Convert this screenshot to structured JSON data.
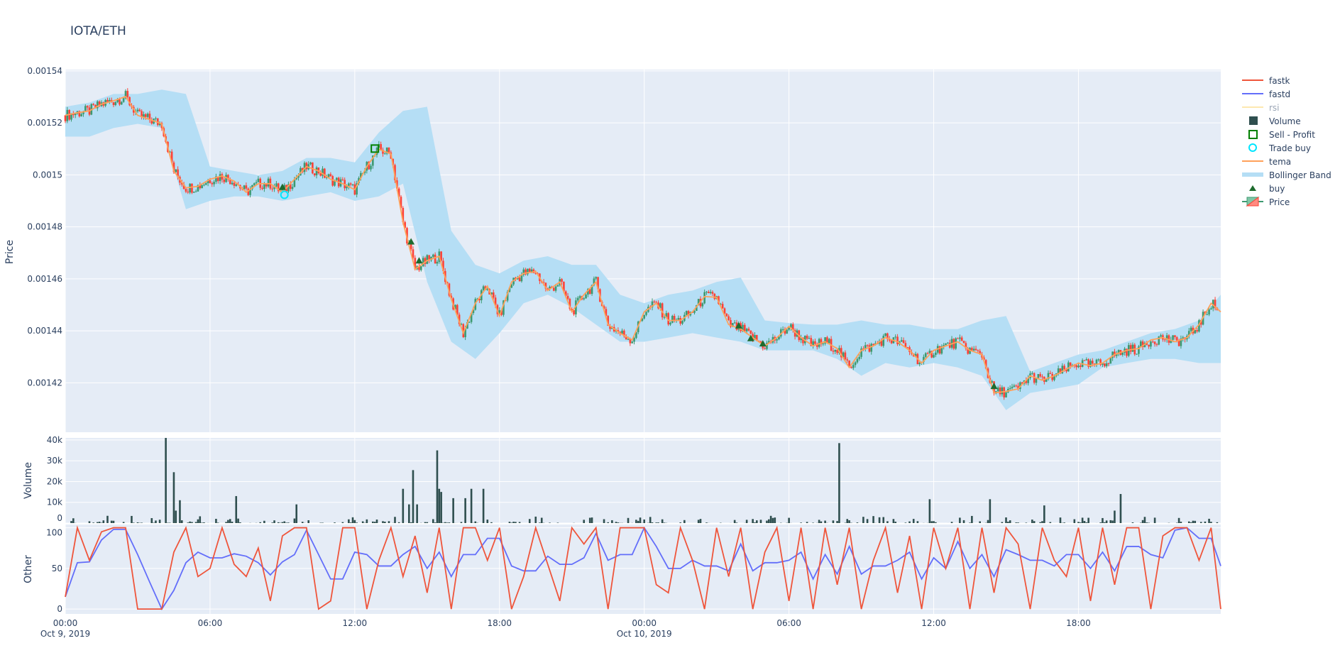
{
  "title": "IOTA/ETH",
  "colors": {
    "background": "#e5ecf6",
    "grid": "#ffffff",
    "increasing": "#3d9970",
    "decreasing": "#ff4136",
    "tema": "#ffa15a",
    "bollinger": "#b5def5",
    "volume": "#2f4f4f",
    "fastk": "#ef553b",
    "fastd": "#636efa",
    "rsi": "#fde8b0",
    "buy": "#1e6b2e",
    "sell_profit": "#008000",
    "trade_buy": "#00e5ff"
  },
  "legend": {
    "placement": "right",
    "items": [
      {
        "name": "fastk",
        "icon": "line",
        "color": "#ef553b"
      },
      {
        "name": "fastd",
        "icon": "line",
        "color": "#636efa"
      },
      {
        "name": "rsi",
        "icon": "line",
        "color": "#fde8b0",
        "hidden": true
      },
      {
        "name": "Volume",
        "icon": "square",
        "color": "#2f4f4f"
      },
      {
        "name": "Sell - Profit",
        "icon": "square-open",
        "color": "#008000"
      },
      {
        "name": "Trade buy",
        "icon": "circle-open",
        "color": "#00e5ff"
      },
      {
        "name": "tema",
        "icon": "line",
        "color": "#ffa15a"
      },
      {
        "name": "Bollinger Band",
        "icon": "band",
        "color": "#b5def5"
      },
      {
        "name": "buy",
        "icon": "triangle-up",
        "color": "#1e6b2e"
      },
      {
        "name": "Price",
        "icon": "candlestick",
        "color": "#3d9970"
      }
    ]
  },
  "chart_data": [
    {
      "type": "candlestick+line",
      "ylabel": "Price",
      "ylim": [
        0.001401,
        0.0015405
      ],
      "yticks": [
        "0.00142",
        "0.00144",
        "0.00146",
        "0.00148",
        "0.0015",
        "0.00152",
        "0.00154"
      ],
      "ytick_values": [
        0.00142,
        0.00144,
        0.00146,
        0.00148,
        0.0015,
        0.00152,
        0.00154
      ],
      "grid": true,
      "tema": {
        "name": "tema",
        "start": "2019-10-09 00:00",
        "interval_minutes": 30,
        "values": [
          0.0015229,
          0.0015239,
          0.0015246,
          0.0015272,
          0.0015285,
          0.0015301,
          0.0015229,
          0.0015213,
          0.0015196,
          0.0015015,
          0.001495,
          0.0014956,
          0.0014983,
          0.0014996,
          0.0014976,
          0.0014933,
          0.0014966,
          0.0014966,
          0.0014933,
          0.0014983,
          0.0015032,
          0.0015015,
          0.0014983,
          0.0014966,
          0.0014943,
          0.0015032,
          0.0015098,
          0.0015081,
          0.0014818,
          0.0014637,
          0.001467,
          0.0014687,
          0.0014522,
          0.0014391,
          0.0014506,
          0.0014572,
          0.0014457,
          0.0014588,
          0.0014621,
          0.0014628,
          0.0014555,
          0.0014588,
          0.0014473,
          0.0014539,
          0.0014588,
          0.0014424,
          0.0014391,
          0.0014365,
          0.0014473,
          0.0014506,
          0.001444,
          0.001444,
          0.0014473,
          0.0014532,
          0.0014529,
          0.0014424,
          0.0014407,
          0.0014374,
          0.0014342,
          0.0014374,
          0.0014417,
          0.0014374,
          0.0014342,
          0.0014358,
          0.0014332,
          0.0014259,
          0.0014325,
          0.0014342,
          0.0014374,
          0.0014358,
          0.0014325,
          0.0014276,
          0.0014325,
          0.0014342,
          0.0014358,
          0.0014325,
          0.0014309,
          0.0014161,
          0.0014167,
          0.0014177,
          0.0014227,
          0.001421,
          0.0014227,
          0.0014253,
          0.0014276,
          0.0014266,
          0.0014276,
          0.0014309,
          0.0014325,
          0.0014332,
          0.0014365,
          0.0014374,
          0.0014358,
          0.0014374,
          0.0014424,
          0.0014506,
          0.0014473
        ]
      },
      "bollinger": {
        "name": "Bollinger Band",
        "start": "2019-10-09 00:00",
        "interval_minutes": 60,
        "upper": [
          0.0015262,
          0.0015278,
          0.0015311,
          0.0015311,
          0.0015328,
          0.0015311,
          0.0015032,
          0.0015015,
          0.0014999,
          0.0015015,
          0.0015065,
          0.0015065,
          0.0015048,
          0.0015163,
          0.0015246,
          0.0015262,
          0.0014785,
          0.0014654,
          0.0014621,
          0.001467,
          0.0014687,
          0.0014654,
          0.0014654,
          0.0014539,
          0.0014506,
          0.0014539,
          0.0014555,
          0.0014588,
          0.0014605,
          0.001444,
          0.001443,
          0.0014424,
          0.0014424,
          0.001444,
          0.0014424,
          0.0014424,
          0.0014407,
          0.0014407,
          0.001444,
          0.0014457,
          0.0014243,
          0.0014276,
          0.0014309,
          0.0014325,
          0.0014358,
          0.0014391,
          0.0014407,
          0.001444,
          0.0014539
        ],
        "lower": [
          0.0015147,
          0.0015147,
          0.001518,
          0.0015196,
          0.001518,
          0.0014868,
          0.00149,
          0.0014917,
          0.0014917,
          0.00149,
          0.0014917,
          0.0014933,
          0.00149,
          0.0014917,
          0.0014966,
          0.0014588,
          0.0014358,
          0.0014292,
          0.0014391,
          0.0014506,
          0.0014539,
          0.001449,
          0.0014424,
          0.0014358,
          0.0014358,
          0.0014374,
          0.0014391,
          0.0014374,
          0.0014358,
          0.0014325,
          0.0014325,
          0.0014325,
          0.0014292,
          0.0014227,
          0.0014276,
          0.0014259,
          0.0014276,
          0.0014259,
          0.0014227,
          0.0014095,
          0.0014161,
          0.0014177,
          0.0014194,
          0.0014259,
          0.0014276,
          0.0014292,
          0.0014292,
          0.0014276,
          0.0014276
        ]
      },
      "buy": [
        {
          "time": "2019-10-09 09:00",
          "price": 0.0014953
        },
        {
          "time": "2019-10-09 14:20",
          "price": 0.0014743
        },
        {
          "time": "2019-10-09 14:40",
          "price": 0.001467
        },
        {
          "time": "2019-10-10 03:55",
          "price": 0.001442
        },
        {
          "time": "2019-10-10 04:25",
          "price": 0.0014371
        },
        {
          "time": "2019-10-10 04:55",
          "price": 0.0014351
        },
        {
          "time": "2019-10-10 14:30",
          "price": 0.0014187
        }
      ],
      "trade_buy": [
        {
          "time": "2019-10-09 09:05",
          "price": 0.0014923
        }
      ],
      "sell_profit": [
        {
          "time": "2019-10-09 12:50",
          "price": 0.0015101
        }
      ]
    },
    {
      "type": "bar",
      "ylabel": "Volume",
      "ylim": [
        0,
        41000
      ],
      "yticks": [
        "0",
        "10k",
        "20k",
        "30k",
        "40k"
      ],
      "ytick_values": [
        0,
        10000,
        20000,
        30000,
        40000
      ],
      "bar_interval_minutes": 5,
      "large_bars": [
        {
          "time": "2019-10-09 04:10",
          "value": 41000
        },
        {
          "time": "2019-10-09 04:30",
          "value": 24500
        },
        {
          "time": "2019-10-09 04:35",
          "value": 6000
        },
        {
          "time": "2019-10-09 04:45",
          "value": 11000
        },
        {
          "time": "2019-10-09 07:05",
          "value": 13000
        },
        {
          "time": "2019-10-09 09:35",
          "value": 9000
        },
        {
          "time": "2019-10-09 14:00",
          "value": 16500
        },
        {
          "time": "2019-10-09 14:15",
          "value": 9000
        },
        {
          "time": "2019-10-09 14:25",
          "value": 25500
        },
        {
          "time": "2019-10-09 14:35",
          "value": 9000
        },
        {
          "time": "2019-10-09 15:25",
          "value": 35000
        },
        {
          "time": "2019-10-09 15:30",
          "value": 16500
        },
        {
          "time": "2019-10-09 15:35",
          "value": 15000
        },
        {
          "time": "2019-10-09 16:05",
          "value": 12000
        },
        {
          "time": "2019-10-09 16:35",
          "value": 12000
        },
        {
          "time": "2019-10-09 16:50",
          "value": 16500
        },
        {
          "time": "2019-10-09 17:20",
          "value": 16500
        },
        {
          "time": "2019-10-10 08:05",
          "value": 38500
        },
        {
          "time": "2019-10-10 11:50",
          "value": 11500
        },
        {
          "time": "2019-10-10 14:20",
          "value": 11500
        },
        {
          "time": "2019-10-10 16:35",
          "value": 8500
        },
        {
          "time": "2019-10-10 19:30",
          "value": 6000
        },
        {
          "time": "2019-10-10 19:45",
          "value": 14000
        }
      ]
    },
    {
      "type": "line",
      "ylabel": "Other",
      "ylim": [
        -6,
        104
      ],
      "yticks": [
        "0",
        "50",
        "100"
      ],
      "ytick_values": [
        0,
        50,
        100
      ],
      "start": "2019-10-09 00:00",
      "interval_minutes": 30,
      "series": [
        {
          "name": "fastk",
          "values": [
            15,
            100,
            60,
            95,
            100,
            100,
            0,
            0,
            0,
            70,
            100,
            40,
            50,
            100,
            55,
            40,
            75,
            10,
            90,
            100,
            100,
            0,
            10,
            100,
            100,
            0,
            60,
            100,
            40,
            90,
            20,
            100,
            0,
            100,
            100,
            60,
            100,
            0,
            40,
            100,
            55,
            10,
            100,
            80,
            100,
            0,
            100,
            100,
            100,
            30,
            20,
            100,
            60,
            0,
            100,
            40,
            100,
            0,
            70,
            100,
            10,
            100,
            0,
            100,
            30,
            100,
            0,
            60,
            100,
            20,
            90,
            0,
            100,
            50,
            100,
            0,
            100,
            20,
            100,
            80,
            0,
            100,
            60,
            40,
            100,
            10,
            100,
            30,
            100,
            100,
            0,
            90,
            100,
            100,
            60,
            100,
            0
          ]
        },
        {
          "name": "fastd",
          "values": [
            15,
            57,
            58,
            85,
            98,
            98,
            67,
            33,
            0,
            23,
            57,
            70,
            63,
            63,
            68,
            65,
            57,
            42,
            58,
            67,
            97,
            67,
            37,
            37,
            70,
            67,
            53,
            53,
            67,
            77,
            50,
            70,
            40,
            67,
            67,
            87,
            87,
            53,
            47,
            47,
            65,
            55,
            55,
            63,
            93,
            60,
            67,
            67,
            100,
            77,
            50,
            50,
            60,
            53,
            53,
            47,
            80,
            47,
            57,
            57,
            60,
            70,
            37,
            67,
            43,
            77,
            43,
            53,
            53,
            60,
            70,
            37,
            63,
            50,
            83,
            50,
            67,
            40,
            73,
            67,
            60,
            60,
            53,
            67,
            67,
            50,
            70,
            47,
            77,
            77,
            67,
            63,
            97,
            100,
            87,
            87,
            53
          ]
        }
      ]
    }
  ],
  "xaxis": {
    "range": [
      "2019-10-09 00:00",
      "2019-10-10 23:54"
    ],
    "ticks": [
      {
        "label": "00:00",
        "date": "Oct 9, 2019",
        "time": "2019-10-09 00:00"
      },
      {
        "label": "06:00",
        "time": "2019-10-09 06:00"
      },
      {
        "label": "12:00",
        "time": "2019-10-09 12:00"
      },
      {
        "label": "18:00",
        "time": "2019-10-09 18:00"
      },
      {
        "label": "00:00",
        "date": "Oct 10, 2019",
        "time": "2019-10-10 00:00"
      },
      {
        "label": "06:00",
        "time": "2019-10-10 06:00"
      },
      {
        "label": "12:00",
        "time": "2019-10-10 12:00"
      },
      {
        "label": "18:00",
        "time": "2019-10-10 18:00"
      }
    ]
  }
}
